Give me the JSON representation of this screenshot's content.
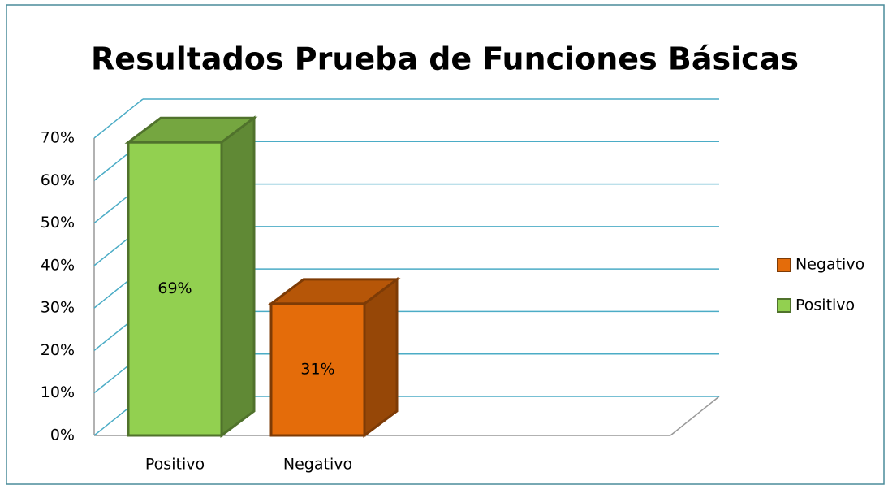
{
  "chart_data": {
    "type": "bar3d",
    "title": "Resultados Prueba de Funciones Básicas",
    "categories": [
      "Positivo",
      "Negativo"
    ],
    "series": [
      {
        "name": "Positivo",
        "color": "#92d050",
        "values": [
          69,
          null
        ],
        "value_labels": [
          "69%",
          null
        ]
      },
      {
        "name": "Negativo",
        "color": "#e46c0a",
        "values": [
          null,
          31
        ],
        "value_labels": [
          null,
          "31%"
        ]
      }
    ],
    "ylim": [
      0,
      70
    ],
    "yticks": [
      {
        "value": 0,
        "label": "0%"
      },
      {
        "value": 10,
        "label": "10%"
      },
      {
        "value": 20,
        "label": "20%"
      },
      {
        "value": 30,
        "label": "30%"
      },
      {
        "value": 40,
        "label": "40%"
      },
      {
        "value": 50,
        "label": "50%"
      },
      {
        "value": 60,
        "label": "60%"
      },
      {
        "value": 70,
        "label": "70%"
      }
    ],
    "grid": true,
    "legend": "right"
  }
}
